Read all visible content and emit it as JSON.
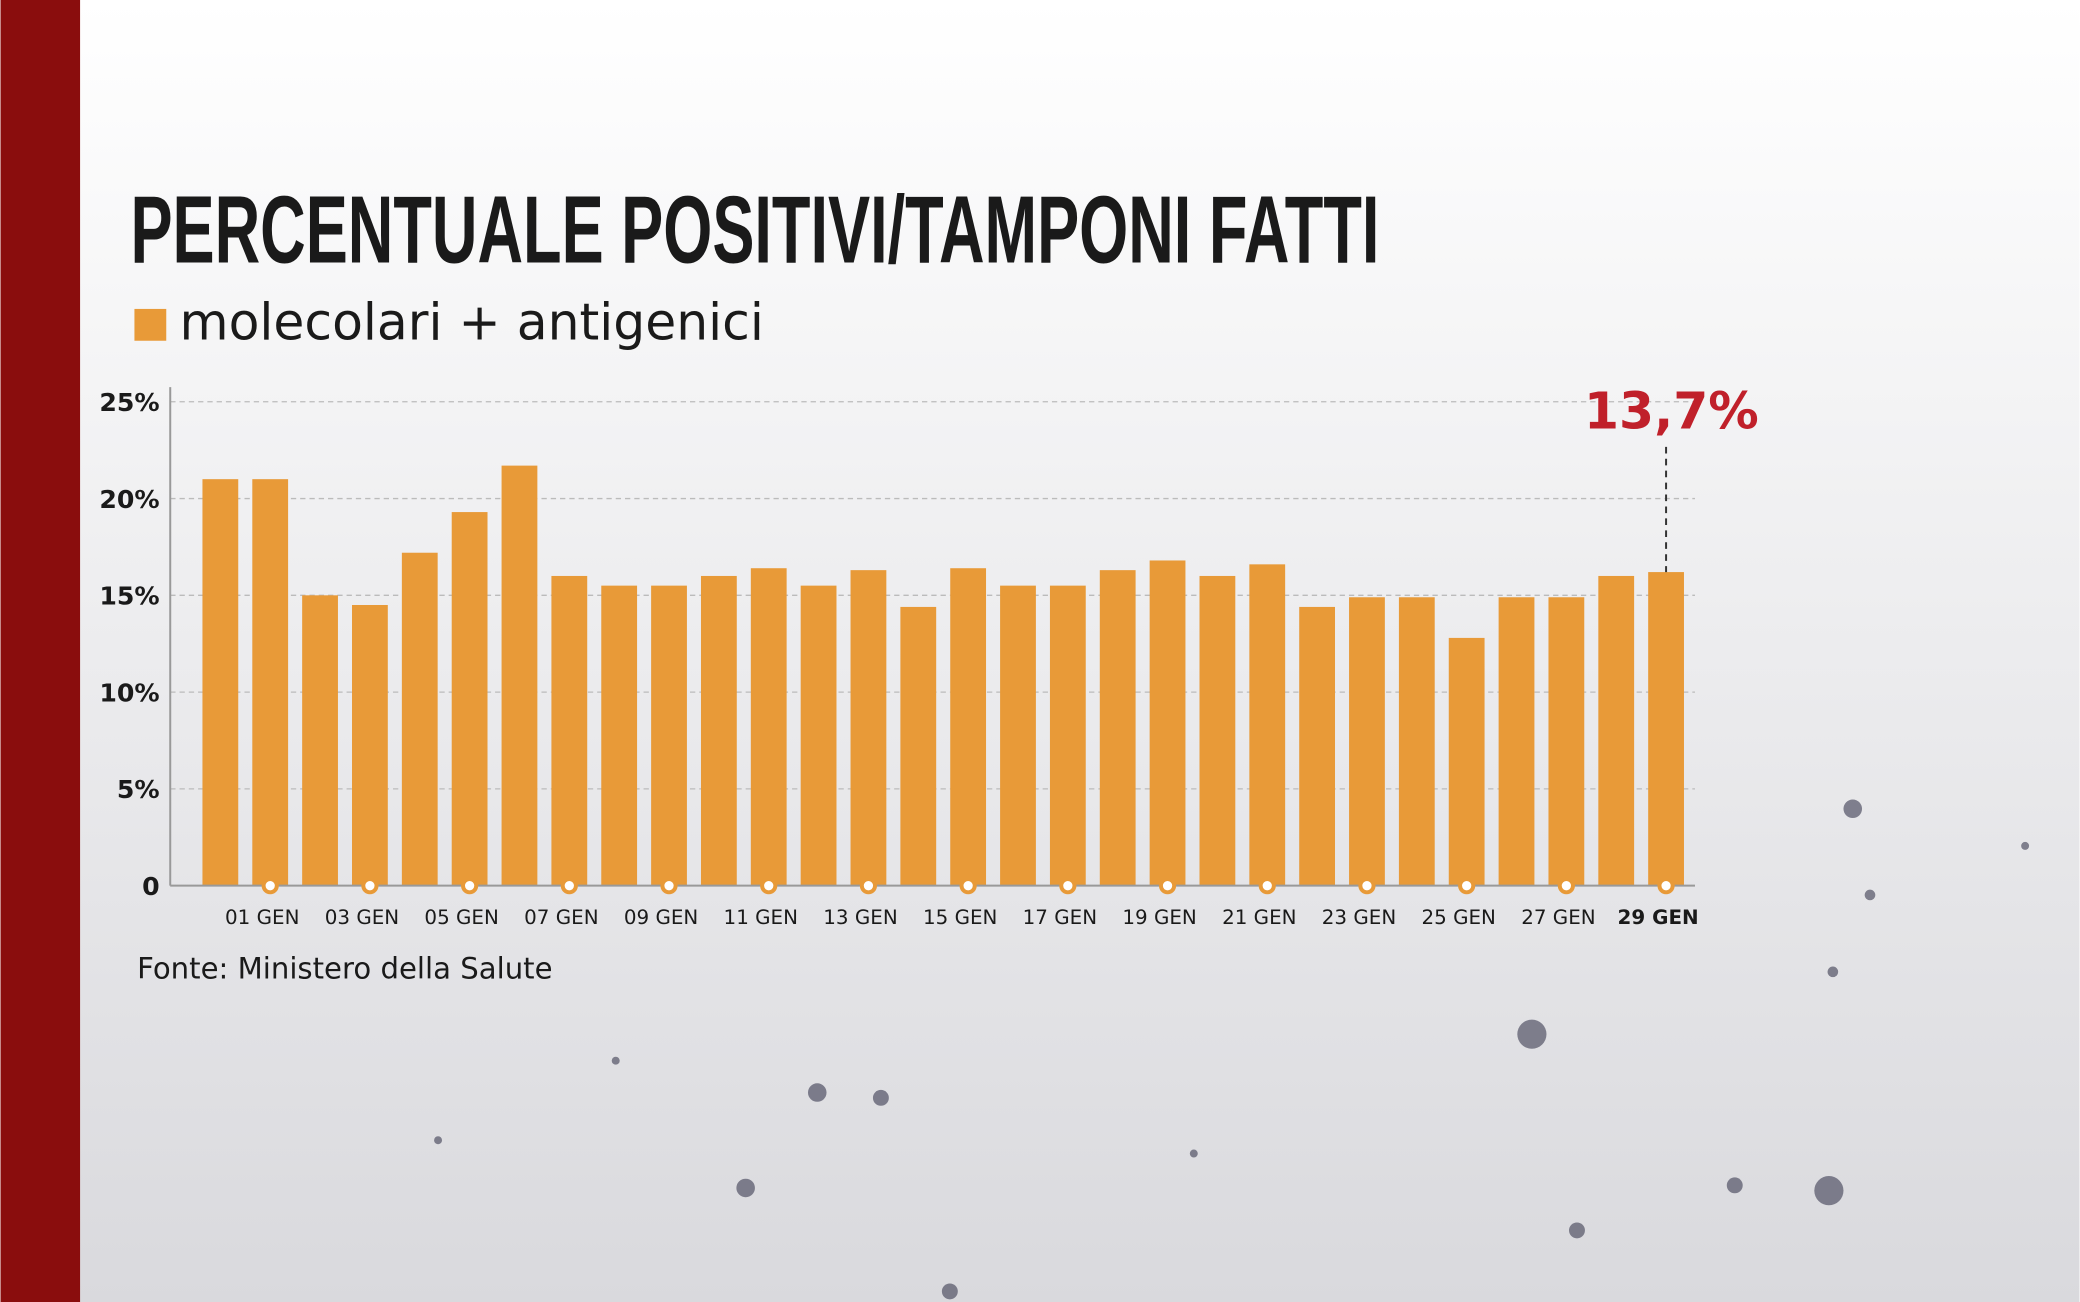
{
  "chart_data": {
    "type": "bar",
    "title": "PERCENTUALE POSITIVI/TAMPONI FATTI",
    "source": "Fonte: Ministero della Salute",
    "annotation": "13,7%",
    "categories": [
      null,
      "01 GEN",
      null,
      "03 GEN",
      null,
      "05 GEN",
      null,
      "07 GEN",
      null,
      "09 GEN",
      null,
      "11 GEN",
      null,
      "13 GEN",
      null,
      "15 GEN",
      null,
      "17 GEN",
      null,
      "19 GEN",
      null,
      "21 GEN",
      null,
      "23 GEN",
      null,
      "25 GEN",
      null,
      "27 GEN",
      null,
      "29 GEN"
    ],
    "series": [
      {
        "name": "molecolari + antigenici",
        "color": "#e89a38",
        "values": [
          21,
          21,
          15,
          14.5,
          17.2,
          19.3,
          21.7,
          16,
          15.5,
          15.5,
          16,
          16.4,
          15.5,
          16.3,
          14.4,
          16.4,
          15.5,
          15.5,
          16.3,
          16.8,
          16,
          16.6,
          14.4,
          14.9,
          14.9,
          12.8,
          14.9,
          14.9,
          16,
          16.2
        ]
      }
    ],
    "ylim": [
      0,
      25
    ],
    "yticks": [
      0,
      {
        "value": 5,
        "label": "5%"
      },
      {
        "value": 10,
        "label": "10%"
      },
      {
        "value": 15,
        "label": "15%"
      },
      {
        "value": 20,
        "label": "20%"
      },
      {
        "value": 25,
        "label": "25%"
      }
    ],
    "grid": true
  }
}
